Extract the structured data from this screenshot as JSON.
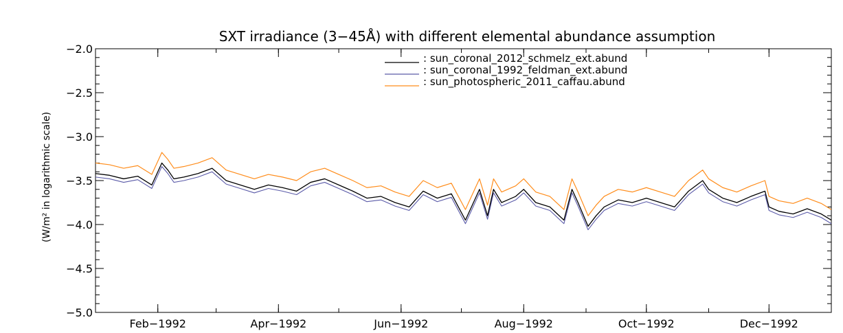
{
  "chart_data": {
    "type": "line",
    "title": "SXT irradiance (3−45Å) with different elemental abundance assumption",
    "ylabel": "(W/m² in logarithmic scale)",
    "xlabel": "",
    "ylim": [
      -5.0,
      -2.0
    ],
    "xlim": [
      "1992-01-01",
      "1993-01-01"
    ],
    "x_ticks": [
      {
        "date": "1992-02-01",
        "label": "Feb−1992"
      },
      {
        "date": "1992-04-01",
        "label": "Apr−1992"
      },
      {
        "date": "1992-06-01",
        "label": "Jun−1992"
      },
      {
        "date": "1992-08-01",
        "label": "Aug−1992"
      },
      {
        "date": "1992-10-01",
        "label": "Oct−1992"
      },
      {
        "date": "1992-12-01",
        "label": "Dec−1992"
      }
    ],
    "y_ticks": [
      {
        "value": -2.0,
        "label": "−2.0"
      },
      {
        "value": -2.5,
        "label": "−2.5"
      },
      {
        "value": -3.0,
        "label": "−3.0"
      },
      {
        "value": -3.5,
        "label": "−3.5"
      },
      {
        "value": -4.0,
        "label": "−4.0"
      },
      {
        "value": -4.5,
        "label": "−4.5"
      },
      {
        "value": -5.0,
        "label": "−5.0"
      }
    ],
    "legend_position": "top-right",
    "grid": false,
    "x": [
      "1992-01-01",
      "1992-01-08",
      "1992-01-15",
      "1992-01-22",
      "1992-01-29",
      "1992-02-03",
      "1992-02-06",
      "1992-02-09",
      "1992-02-14",
      "1992-02-21",
      "1992-02-28",
      "1992-03-06",
      "1992-03-13",
      "1992-03-20",
      "1992-03-27",
      "1992-04-03",
      "1992-04-10",
      "1992-04-17",
      "1992-04-24",
      "1992-05-01",
      "1992-05-08",
      "1992-05-15",
      "1992-05-22",
      "1992-05-29",
      "1992-06-05",
      "1992-06-12",
      "1992-06-19",
      "1992-06-26",
      "1992-07-03",
      "1992-07-07",
      "1992-07-10",
      "1992-07-14",
      "1992-07-17",
      "1992-07-21",
      "1992-07-24",
      "1992-07-28",
      "1992-08-01",
      "1992-08-07",
      "1992-08-14",
      "1992-08-21",
      "1992-08-25",
      "1992-08-28",
      "1992-09-02",
      "1992-09-06",
      "1992-09-10",
      "1992-09-17",
      "1992-09-24",
      "1992-10-01",
      "1992-10-08",
      "1992-10-15",
      "1992-10-22",
      "1992-10-29",
      "1992-11-01",
      "1992-11-08",
      "1992-11-15",
      "1992-11-22",
      "1992-11-29",
      "1992-12-01",
      "1992-12-06",
      "1992-12-13",
      "1992-12-20",
      "1992-12-27",
      "1993-01-01"
    ],
    "series": [
      {
        "name": ": sun_coronal_2012_schmelz_ext.abund",
        "color": "#000000",
        "width": 1.3,
        "values": [
          -3.42,
          -3.44,
          -3.48,
          -3.45,
          -3.55,
          -3.3,
          -3.38,
          -3.48,
          -3.46,
          -3.42,
          -3.36,
          -3.5,
          -3.55,
          -3.6,
          -3.55,
          -3.58,
          -3.62,
          -3.52,
          -3.48,
          -3.55,
          -3.62,
          -3.7,
          -3.68,
          -3.75,
          -3.8,
          -3.62,
          -3.7,
          -3.65,
          -3.95,
          -3.75,
          -3.6,
          -3.9,
          -3.6,
          -3.75,
          -3.72,
          -3.68,
          -3.6,
          -3.75,
          -3.8,
          -3.95,
          -3.6,
          -3.75,
          -4.02,
          -3.9,
          -3.8,
          -3.72,
          -3.75,
          -3.7,
          -3.75,
          -3.8,
          -3.62,
          -3.5,
          -3.6,
          -3.7,
          -3.75,
          -3.68,
          -3.62,
          -3.8,
          -3.85,
          -3.88,
          -3.82,
          -3.88,
          -3.95
        ]
      },
      {
        "name": ": sun_coronal_1992_feldman_ext.abund",
        "color": "#5a5aa8",
        "width": 1.1,
        "values": [
          -3.46,
          -3.48,
          -3.52,
          -3.49,
          -3.59,
          -3.34,
          -3.42,
          -3.52,
          -3.5,
          -3.46,
          -3.4,
          -3.54,
          -3.59,
          -3.64,
          -3.59,
          -3.62,
          -3.66,
          -3.56,
          -3.52,
          -3.59,
          -3.66,
          -3.74,
          -3.72,
          -3.79,
          -3.84,
          -3.66,
          -3.74,
          -3.69,
          -3.99,
          -3.79,
          -3.64,
          -3.94,
          -3.64,
          -3.79,
          -3.76,
          -3.72,
          -3.64,
          -3.79,
          -3.84,
          -3.99,
          -3.64,
          -3.79,
          -4.06,
          -3.94,
          -3.84,
          -3.76,
          -3.79,
          -3.74,
          -3.79,
          -3.84,
          -3.66,
          -3.54,
          -3.64,
          -3.74,
          -3.79,
          -3.72,
          -3.66,
          -3.84,
          -3.89,
          -3.92,
          -3.86,
          -3.92,
          -3.99
        ]
      },
      {
        "name": ": sun_photospheric_2011_caffau.abund",
        "color": "#ff8c1a",
        "width": 1.2,
        "values": [
          -3.3,
          -3.32,
          -3.36,
          -3.33,
          -3.43,
          -3.18,
          -3.26,
          -3.36,
          -3.34,
          -3.3,
          -3.24,
          -3.38,
          -3.43,
          -3.48,
          -3.43,
          -3.46,
          -3.5,
          -3.4,
          -3.36,
          -3.43,
          -3.5,
          -3.58,
          -3.56,
          -3.63,
          -3.68,
          -3.5,
          -3.58,
          -3.53,
          -3.83,
          -3.63,
          -3.48,
          -3.78,
          -3.48,
          -3.63,
          -3.6,
          -3.56,
          -3.48,
          -3.63,
          -3.68,
          -3.83,
          -3.48,
          -3.63,
          -3.9,
          -3.78,
          -3.68,
          -3.6,
          -3.63,
          -3.58,
          -3.63,
          -3.68,
          -3.5,
          -3.38,
          -3.48,
          -3.58,
          -3.63,
          -3.56,
          -3.5,
          -3.68,
          -3.73,
          -3.76,
          -3.7,
          -3.76,
          -3.83
        ]
      }
    ]
  }
}
